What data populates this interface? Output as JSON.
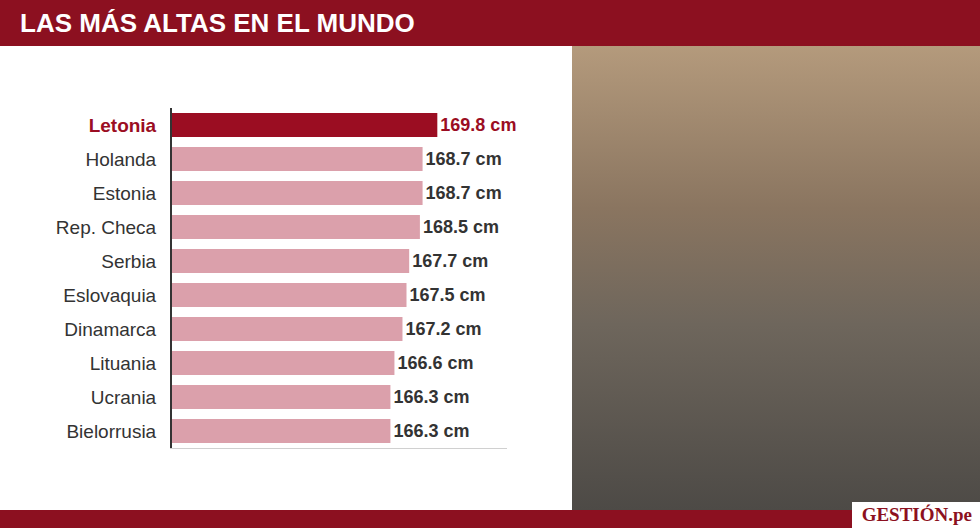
{
  "chart_data": {
    "type": "bar",
    "orientation": "horizontal",
    "title": "LAS MÁS ALTAS EN EL MUNDO",
    "categories": [
      "Letonia",
      "Holanda",
      "Estonia",
      "Rep. Checa",
      "Serbia",
      "Eslovaquia",
      "Dinamarca",
      "Lituania",
      "Ucrania",
      "Bielorrusia"
    ],
    "values": [
      169.8,
      168.7,
      168.7,
      168.5,
      167.7,
      167.5,
      167.2,
      166.6,
      166.3,
      166.3
    ],
    "value_labels": [
      "169.8 cm",
      "168.7 cm",
      "168.7 cm",
      "168.5 cm",
      "167.7 cm",
      "167.5 cm",
      "167.2 cm",
      "166.6 cm",
      "166.3 cm",
      "166.3 cm"
    ],
    "colors": [
      "#9b0d22",
      "#dba0ab",
      "#dba0ab",
      "#dba0ab",
      "#dba0ab",
      "#dba0ab",
      "#dba0ab",
      "#dba0ab",
      "#dba0ab",
      "#dba0ab"
    ],
    "xlim": [
      150,
      175
    ],
    "data_labels": true,
    "tick_labels": "y",
    "grid": false,
    "annotations": [
      "GESTIÓN.pe"
    ]
  }
}
